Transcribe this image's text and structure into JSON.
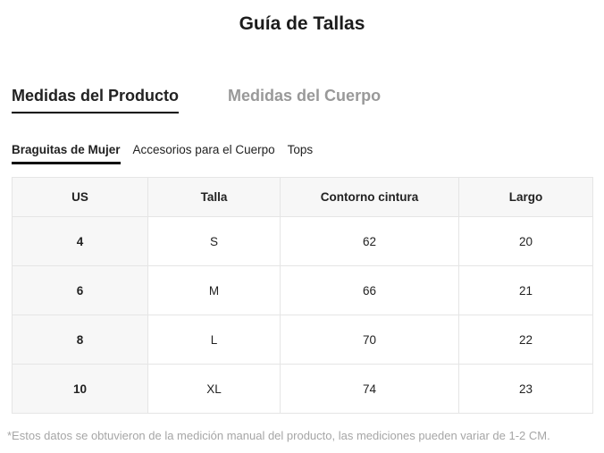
{
  "page": {
    "title": "Guía de Tallas",
    "footnote": "*Estos datos se obtuvieron de la medición manual del producto, las mediciones pueden variar de 1-2 CM."
  },
  "main_tabs": [
    {
      "label": "Medidas del Producto",
      "active": true
    },
    {
      "label": "Medidas del Cuerpo",
      "active": false
    }
  ],
  "category_tabs": [
    {
      "label": "Braguitas de Mujer",
      "active": true
    },
    {
      "label": "Accesorios para el Cuerpo",
      "active": false
    },
    {
      "label": "Tops",
      "active": false
    }
  ],
  "size_table": {
    "columns": [
      "US",
      "Talla",
      "Contorno cintura",
      "Largo"
    ],
    "rows": [
      [
        "4",
        "S",
        "62",
        "20"
      ],
      [
        "6",
        "M",
        "66",
        "21"
      ],
      [
        "8",
        "L",
        "70",
        "22"
      ],
      [
        "10",
        "XL",
        "74",
        "23"
      ]
    ]
  },
  "colors": {
    "text_primary": "#222222",
    "tab_inactive": "#999999",
    "footnote_text": "#a6a6a6",
    "table_header_bg": "#f7f7f7",
    "table_border": "#e5e5e5",
    "active_underline": "#000000",
    "background": "#ffffff"
  }
}
